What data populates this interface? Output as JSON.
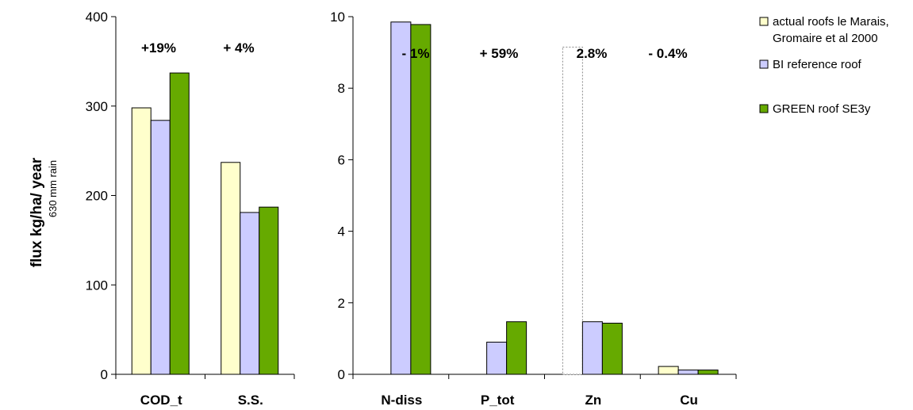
{
  "chart_data": {
    "type": "bar",
    "y_axis_label": "flux kg/ha/ year",
    "y_axis_sublabel": "630 mm rain",
    "series": [
      {
        "name": "actual roofs le Marais, Gromaire et al 2000",
        "color": "#ffffcc"
      },
      {
        "name": "BI reference roof",
        "color": "#ccccff"
      },
      {
        "name": "GREEN roof SE3y",
        "color": "#66aa00"
      }
    ],
    "legend": [
      {
        "lines": [
          "actual roofs le Marais,",
          "Gromaire et al 2000"
        ],
        "color": "#ffffcc"
      },
      {
        "lines": [
          "BI reference roof"
        ],
        "color": "#ccccff"
      },
      {
        "lines": [
          "GREEN roof SE3y"
        ],
        "color": "#66aa00"
      }
    ],
    "legend_position": "right",
    "panels": [
      {
        "id": "left",
        "ylim": [
          0,
          400
        ],
        "yticks": [
          "0",
          "100",
          "200",
          "300",
          "400"
        ],
        "ytick_values": [
          0,
          100,
          200,
          300,
          400
        ],
        "categories": [
          "COD_t",
          "S.S."
        ],
        "values": [
          [
            298,
            284,
            337
          ],
          [
            237,
            181,
            187
          ]
        ],
        "annotations": [
          "+19%",
          "+ 4%"
        ]
      },
      {
        "id": "right",
        "ylim": [
          0,
          10
        ],
        "yticks": [
          "0",
          "2",
          "4",
          "6",
          "8",
          "10"
        ],
        "ytick_values": [
          0,
          2,
          4,
          6,
          8,
          10
        ],
        "categories": [
          "N-diss",
          "P_tot",
          "Zn",
          "Cu"
        ],
        "values": [
          [
            null,
            9.85,
            9.78
          ],
          [
            null,
            0.9,
            1.47
          ],
          [
            9.15,
            1.47,
            1.43
          ],
          [
            0.22,
            0.12,
            0.12
          ]
        ],
        "dotted_series_index": 0,
        "annotations": [
          "- 1%",
          "+ 59%",
          "2.8%",
          "- 0.4%"
        ]
      }
    ]
  }
}
